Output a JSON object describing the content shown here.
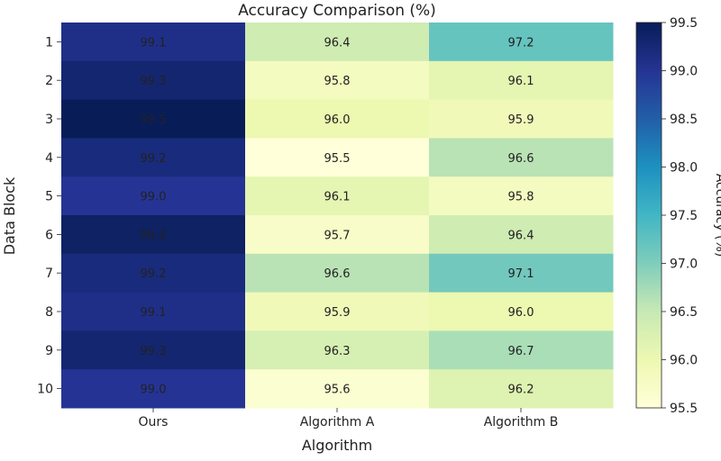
{
  "chart_data": {
    "type": "heatmap",
    "title": "Accuracy Comparison (%)",
    "xlabel": "Algorithm",
    "ylabel": "Data Block",
    "columns": [
      "Ours",
      "Algorithm A",
      "Algorithm B"
    ],
    "rows": [
      "1",
      "2",
      "3",
      "4",
      "5",
      "6",
      "7",
      "8",
      "9",
      "10"
    ],
    "values": [
      [
        99.1,
        96.4,
        97.2
      ],
      [
        99.3,
        95.8,
        96.1
      ],
      [
        99.5,
        96.0,
        95.9
      ],
      [
        99.2,
        95.5,
        96.6
      ],
      [
        99.0,
        96.1,
        95.8
      ],
      [
        99.4,
        95.7,
        96.4
      ],
      [
        99.2,
        96.6,
        97.1
      ],
      [
        99.1,
        95.9,
        96.0
      ],
      [
        99.3,
        96.3,
        96.7
      ],
      [
        99.0,
        95.6,
        96.2
      ]
    ],
    "colorbar": {
      "label": "Accuracy (%)",
      "min": 95.5,
      "max": 99.5,
      "ticks": [
        "95.5",
        "96.0",
        "96.5",
        "97.0",
        "97.5",
        "98.0",
        "98.5",
        "99.0",
        "99.5"
      ],
      "colormap": "YlGnBu"
    },
    "grid": false
  }
}
